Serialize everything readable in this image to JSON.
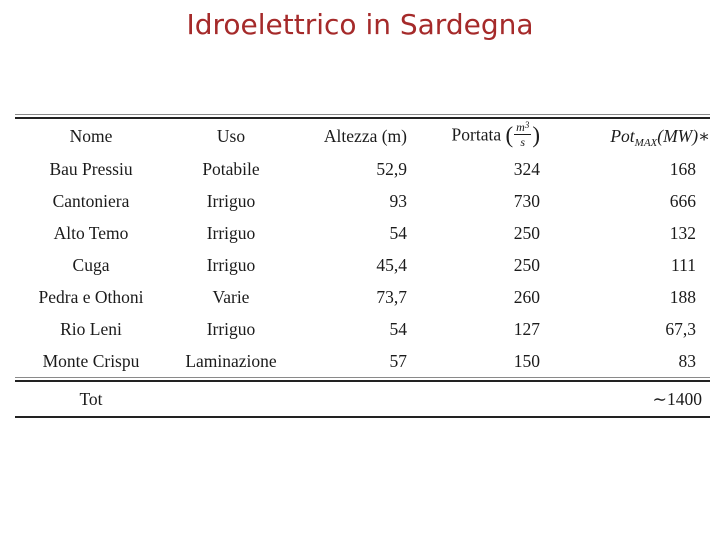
{
  "slide": {
    "title": "Idroelettrico in Sardegna",
    "title_color": "#a52a2a",
    "text_color": "#1b1b1b",
    "rule_color": "#222222"
  },
  "table": {
    "headers": {
      "nome": "Nome",
      "uso": "Uso",
      "altezza": "Altezza (m)",
      "portata_prefix": "Portata ",
      "portata_open_paren": "(",
      "portata_frac_num_base": "m",
      "portata_frac_num_exp": "3",
      "portata_frac_den": "s",
      "portata_close_paren": ")",
      "pot_base": "Pot",
      "pot_sub": "MAX",
      "pot_rest": "(MW)",
      "pot_star": "∗"
    },
    "rows": [
      {
        "nome": "Bau Pressiu",
        "uso": "Potabile",
        "altezza": "52,9",
        "portata": "324",
        "pot": "168"
      },
      {
        "nome": "Cantoniera",
        "uso": "Irriguo",
        "altezza": "93",
        "portata": "730",
        "pot": "666"
      },
      {
        "nome": "Alto Temo",
        "uso": "Irriguo",
        "altezza": "54",
        "portata": "250",
        "pot": "132"
      },
      {
        "nome": "Cuga",
        "uso": "Irriguo",
        "altezza": "45,4",
        "portata": "250",
        "pot": "111"
      },
      {
        "nome": "Pedra e Othoni",
        "uso": "Varie",
        "altezza": "73,7",
        "portata": "260",
        "pot": "188"
      },
      {
        "nome": "Rio Leni",
        "uso": "Irriguo",
        "altezza": "54",
        "portata": "127",
        "pot": "67,3"
      },
      {
        "nome": "Monte Crispu",
        "uso": "Laminazione",
        "altezza": "57",
        "portata": "150",
        "pot": "83"
      }
    ],
    "total": {
      "label": "Tot",
      "value": "∼1400"
    }
  }
}
